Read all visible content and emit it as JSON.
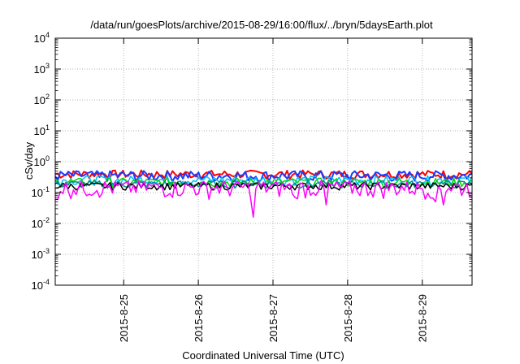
{
  "chart_data": {
    "type": "line",
    "title": "/data/run/goesPlots/archive/2015-08-29/16:00/flux/../bryn/5daysEarth.plot",
    "xlabel": "Coordinated Universal Time (UTC)",
    "ylabel": "cSv/day",
    "yscale": "log",
    "ylim": [
      0.0001,
      10000
    ],
    "xlim": [
      "2015-08-24 02:00",
      "2015-08-29 16:00"
    ],
    "grid": true,
    "ytick_labels": [
      {
        "base": "10",
        "exp": "-4"
      },
      {
        "base": "10",
        "exp": "-3"
      },
      {
        "base": "10",
        "exp": "-2"
      },
      {
        "base": "10",
        "exp": "-1"
      },
      {
        "base": "10",
        "exp": "0"
      },
      {
        "base": "10",
        "exp": "1"
      },
      {
        "base": "10",
        "exp": "2"
      },
      {
        "base": "10",
        "exp": "3"
      },
      {
        "base": "10",
        "exp": "4"
      }
    ],
    "xtick_labels": [
      "2015-8-25",
      "2015-8-26",
      "2015-8-27",
      "2015-8-28",
      "2015-8-29"
    ],
    "xtick_dates": [
      "2015-08-25",
      "2015-08-26",
      "2015-08-27",
      "2015-08-28",
      "2015-08-29"
    ],
    "series": [
      {
        "color": "#ff0000",
        "base": 0.4,
        "spread": 0.14,
        "dips": [],
        "width": 2
      },
      {
        "color": "#1a3cff",
        "base": 0.36,
        "spread": 0.16,
        "dips": [],
        "width": 2
      },
      {
        "color": "#00bfff",
        "base": 0.26,
        "spread": 0.1,
        "dips": [],
        "width": 1.5
      },
      {
        "color": "#00d700",
        "base": 0.22,
        "spread": 0.08,
        "dips": [],
        "width": 1.5
      },
      {
        "color": "#008b8b",
        "base": 0.19,
        "spread": 0.06,
        "dips": [],
        "width": 1.5
      },
      {
        "color": "#000000",
        "base": 0.165,
        "spread": 0.05,
        "dips": [],
        "width": 1.5
      },
      {
        "color": "#ff00ff",
        "base": 0.15,
        "spread": 0.1,
        "dips": [
          {
            "date": "2015-08-24 02:30",
            "value": 0.06
          },
          {
            "date": "2015-08-26 17:30",
            "value": 0.016
          },
          {
            "date": "2015-08-27 07:00",
            "value": 0.07
          },
          {
            "date": "2015-08-27 17:00",
            "value": 0.04
          },
          {
            "date": "2015-08-29 04:30",
            "value": 0.05
          },
          {
            "date": "2015-08-29 06:30",
            "value": 0.04
          }
        ],
        "width": 1.5
      }
    ]
  }
}
